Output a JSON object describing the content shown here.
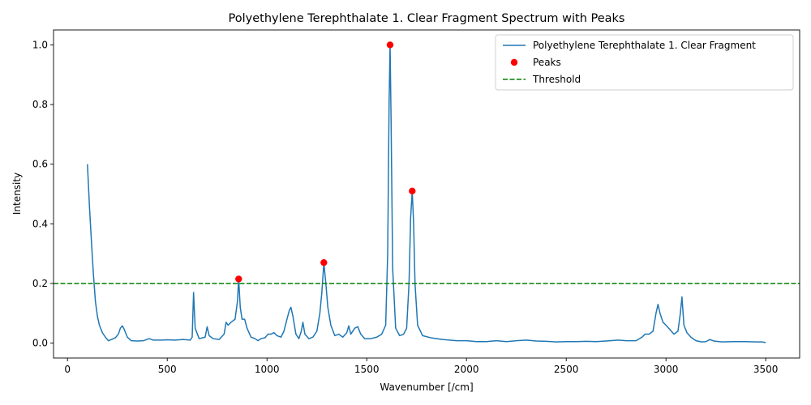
{
  "chart_data": {
    "type": "line",
    "title": "Polyethylene Terephthalate 1. Clear Fragment Spectrum with Peaks",
    "xlabel": "Wavenumber [/cm]",
    "ylabel": "Intensity",
    "xlim": [
      -70,
      3670
    ],
    "ylim": [
      -0.05,
      1.05
    ],
    "xticks": [
      0,
      500,
      1000,
      1500,
      2000,
      2500,
      3000,
      3500
    ],
    "yticks": [
      0.0,
      0.2,
      0.4,
      0.6,
      0.8,
      1.0
    ],
    "grid": false,
    "legend_position": "top-right",
    "colors": {
      "spectrum": "#1f77b4",
      "peaks": "#ff0000",
      "threshold": "#008000"
    },
    "series": [
      {
        "name": "Polyethylene Terephthalate 1. Clear Fragment",
        "style": "solid line",
        "points": [
          [
            100,
            0.6
          ],
          [
            110,
            0.46
          ],
          [
            120,
            0.34
          ],
          [
            130,
            0.23
          ],
          [
            140,
            0.14
          ],
          [
            150,
            0.09
          ],
          [
            160,
            0.06
          ],
          [
            175,
            0.035
          ],
          [
            190,
            0.02
          ],
          [
            205,
            0.008
          ],
          [
            220,
            0.012
          ],
          [
            240,
            0.018
          ],
          [
            255,
            0.03
          ],
          [
            265,
            0.05
          ],
          [
            275,
            0.058
          ],
          [
            285,
            0.045
          ],
          [
            300,
            0.02
          ],
          [
            320,
            0.008
          ],
          [
            350,
            0.007
          ],
          [
            380,
            0.008
          ],
          [
            410,
            0.015
          ],
          [
            430,
            0.01
          ],
          [
            470,
            0.01
          ],
          [
            500,
            0.011
          ],
          [
            540,
            0.01
          ],
          [
            580,
            0.012
          ],
          [
            615,
            0.01
          ],
          [
            625,
            0.02
          ],
          [
            632,
            0.17
          ],
          [
            640,
            0.05
          ],
          [
            660,
            0.015
          ],
          [
            690,
            0.02
          ],
          [
            700,
            0.055
          ],
          [
            710,
            0.025
          ],
          [
            730,
            0.015
          ],
          [
            760,
            0.012
          ],
          [
            785,
            0.03
          ],
          [
            795,
            0.07
          ],
          [
            805,
            0.06
          ],
          [
            820,
            0.07
          ],
          [
            840,
            0.08
          ],
          [
            852,
            0.14
          ],
          [
            858,
            0.215
          ],
          [
            866,
            0.12
          ],
          [
            875,
            0.08
          ],
          [
            888,
            0.08
          ],
          [
            900,
            0.05
          ],
          [
            920,
            0.02
          ],
          [
            940,
            0.015
          ],
          [
            955,
            0.008
          ],
          [
            970,
            0.015
          ],
          [
            990,
            0.018
          ],
          [
            1005,
            0.03
          ],
          [
            1020,
            0.03
          ],
          [
            1035,
            0.035
          ],
          [
            1050,
            0.025
          ],
          [
            1070,
            0.02
          ],
          [
            1085,
            0.04
          ],
          [
            1100,
            0.08
          ],
          [
            1112,
            0.11
          ],
          [
            1120,
            0.12
          ],
          [
            1130,
            0.09
          ],
          [
            1145,
            0.03
          ],
          [
            1160,
            0.015
          ],
          [
            1172,
            0.04
          ],
          [
            1180,
            0.07
          ],
          [
            1190,
            0.03
          ],
          [
            1210,
            0.015
          ],
          [
            1230,
            0.02
          ],
          [
            1250,
            0.04
          ],
          [
            1265,
            0.1
          ],
          [
            1275,
            0.17
          ],
          [
            1285,
            0.27
          ],
          [
            1295,
            0.2
          ],
          [
            1305,
            0.12
          ],
          [
            1320,
            0.06
          ],
          [
            1340,
            0.025
          ],
          [
            1360,
            0.03
          ],
          [
            1380,
            0.02
          ],
          [
            1400,
            0.035
          ],
          [
            1410,
            0.058
          ],
          [
            1420,
            0.03
          ],
          [
            1440,
            0.05
          ],
          [
            1455,
            0.055
          ],
          [
            1470,
            0.03
          ],
          [
            1490,
            0.015
          ],
          [
            1520,
            0.015
          ],
          [
            1550,
            0.02
          ],
          [
            1575,
            0.03
          ],
          [
            1595,
            0.06
          ],
          [
            1605,
            0.3
          ],
          [
            1612,
            0.8
          ],
          [
            1617,
            1.0
          ],
          [
            1622,
            0.75
          ],
          [
            1630,
            0.25
          ],
          [
            1645,
            0.05
          ],
          [
            1665,
            0.025
          ],
          [
            1685,
            0.03
          ],
          [
            1700,
            0.05
          ],
          [
            1712,
            0.2
          ],
          [
            1720,
            0.42
          ],
          [
            1728,
            0.51
          ],
          [
            1735,
            0.4
          ],
          [
            1742,
            0.2
          ],
          [
            1755,
            0.06
          ],
          [
            1780,
            0.025
          ],
          [
            1820,
            0.018
          ],
          [
            1880,
            0.012
          ],
          [
            1950,
            0.008
          ],
          [
            2000,
            0.008
          ],
          [
            2050,
            0.005
          ],
          [
            2100,
            0.005
          ],
          [
            2150,
            0.008
          ],
          [
            2200,
            0.005
          ],
          [
            2250,
            0.008
          ],
          [
            2300,
            0.01
          ],
          [
            2350,
            0.007
          ],
          [
            2400,
            0.006
          ],
          [
            2450,
            0.004
          ],
          [
            2500,
            0.005
          ],
          [
            2550,
            0.005
          ],
          [
            2600,
            0.006
          ],
          [
            2650,
            0.005
          ],
          [
            2700,
            0.007
          ],
          [
            2760,
            0.01
          ],
          [
            2800,
            0.008
          ],
          [
            2850,
            0.008
          ],
          [
            2880,
            0.02
          ],
          [
            2895,
            0.03
          ],
          [
            2915,
            0.03
          ],
          [
            2935,
            0.04
          ],
          [
            2950,
            0.1
          ],
          [
            2960,
            0.13
          ],
          [
            2970,
            0.1
          ],
          [
            2985,
            0.07
          ],
          [
            3000,
            0.06
          ],
          [
            3020,
            0.045
          ],
          [
            3040,
            0.03
          ],
          [
            3060,
            0.04
          ],
          [
            3072,
            0.1
          ],
          [
            3080,
            0.155
          ],
          [
            3090,
            0.06
          ],
          [
            3105,
            0.035
          ],
          [
            3125,
            0.02
          ],
          [
            3150,
            0.008
          ],
          [
            3180,
            0.004
          ],
          [
            3200,
            0.005
          ],
          [
            3220,
            0.012
          ],
          [
            3240,
            0.007
          ],
          [
            3280,
            0.004
          ],
          [
            3340,
            0.005
          ],
          [
            3400,
            0.005
          ],
          [
            3450,
            0.004
          ],
          [
            3480,
            0.004
          ],
          [
            3500,
            0.002
          ]
        ]
      },
      {
        "name": "Peaks",
        "style": "scatter",
        "points": [
          [
            858,
            0.215
          ],
          [
            1285,
            0.27
          ],
          [
            1617,
            1.0
          ],
          [
            1728,
            0.51
          ]
        ]
      },
      {
        "name": "Threshold",
        "style": "dashed horizontal line",
        "y": 0.2
      }
    ]
  }
}
